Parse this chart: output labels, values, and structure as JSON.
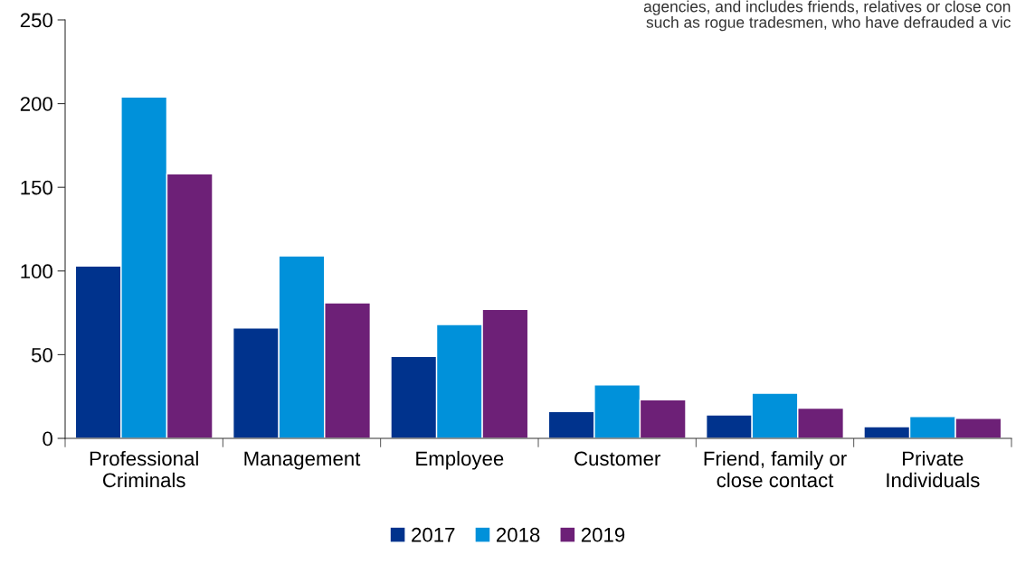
{
  "chart_data": {
    "type": "bar",
    "categories": [
      "Professional\nCriminals",
      "Management",
      "Employee",
      "Customer",
      "Friend, family or\nclose contact",
      "Private\nIndividuals"
    ],
    "series": [
      {
        "name": "2017",
        "color": "#00338d",
        "values": [
          103,
          66,
          49,
          16,
          14,
          7
        ]
      },
      {
        "name": "2018",
        "color": "#0091da",
        "values": [
          204,
          109,
          68,
          32,
          27,
          13
        ]
      },
      {
        "name": "2019",
        "color": "#6d2077",
        "values": [
          158,
          81,
          77,
          23,
          18,
          12
        ]
      }
    ],
    "ylim": [
      0,
      250
    ],
    "yticks": [
      0,
      50,
      100,
      150,
      200,
      250
    ],
    "grid": false,
    "legend": "bottom",
    "annotations": [
      "agencies, and includes friends, relatives or close con\nsuch as rogue tradesmen, who have defrauded a vic"
    ]
  }
}
